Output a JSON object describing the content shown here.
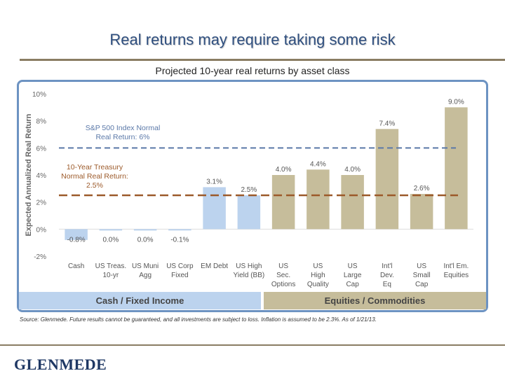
{
  "slide": {
    "title": "Real returns may require taking some risk",
    "source_note": "Source: Glenmede. Future results cannot be guaranteed, and all investments are subject to loss. Inflation is assumed to be 2.3%. As of 1/21/13.",
    "logo_text": "GLENMEDE"
  },
  "chart_data": {
    "type": "bar",
    "title": "Projected 10-year real returns by asset class",
    "ylabel": "Expected Annualized Real Return",
    "ylim": [
      -2,
      10
    ],
    "yticks": [
      -2,
      0,
      2,
      4,
      6,
      8,
      10
    ],
    "ytick_labels": [
      "-2%",
      "0%",
      "2%",
      "4%",
      "6%",
      "8%",
      "10%"
    ],
    "categories": [
      [
        "Cash"
      ],
      [
        "US Treas.",
        "10-yr"
      ],
      [
        "US Muni",
        "Agg"
      ],
      [
        "US Corp",
        "Fixed"
      ],
      [
        "EM Debt"
      ],
      [
        "US High",
        "Yield (BB)"
      ],
      [
        "US",
        "Sec.",
        "Options"
      ],
      [
        "US",
        "High",
        "Quality"
      ],
      [
        "US",
        "Large",
        "Cap"
      ],
      [
        "Int'l",
        "Dev.",
        "Eq"
      ],
      [
        "US",
        "Small",
        "Cap"
      ],
      [
        "Int'l Em.",
        "Equities"
      ]
    ],
    "values": [
      -0.8,
      0.0,
      0.0,
      -0.1,
      3.1,
      2.5,
      4.0,
      4.4,
      4.0,
      7.4,
      2.6,
      9.0
    ],
    "value_labels": [
      "-0.8%",
      "0.0%",
      "0.0%",
      "-0.1%",
      "3.1%",
      "2.5%",
      "4.0%",
      "4.4%",
      "4.0%",
      "7.4%",
      "2.6%",
      "9.0%"
    ],
    "groups": [
      "fixed",
      "fixed",
      "fixed",
      "fixed",
      "fixed",
      "fixed",
      "equity",
      "equity",
      "equity",
      "equity",
      "equity",
      "equity"
    ],
    "reference_lines": [
      {
        "value": 6,
        "label": [
          "S&P 500 Index Normal",
          "Real Return: 6%"
        ],
        "color": "#5a78a8"
      },
      {
        "value": 2.5,
        "label": [
          "10-Year Treasury",
          "Normal Real Return:",
          "2.5%"
        ],
        "color": "#9c5a2a"
      }
    ],
    "group_labels": [
      {
        "label": "Cash / Fixed Income",
        "group": "fixed"
      },
      {
        "label": "Equities / Commodities",
        "group": "equity"
      }
    ],
    "colors": {
      "fixed": "#bcd3ee",
      "equity": "#c6bd9b",
      "fixed_band": "#bcd3ee",
      "equity_band": "#c6bd9b",
      "axis_text": "#666666",
      "title_blue": "#2f4f7f"
    }
  }
}
